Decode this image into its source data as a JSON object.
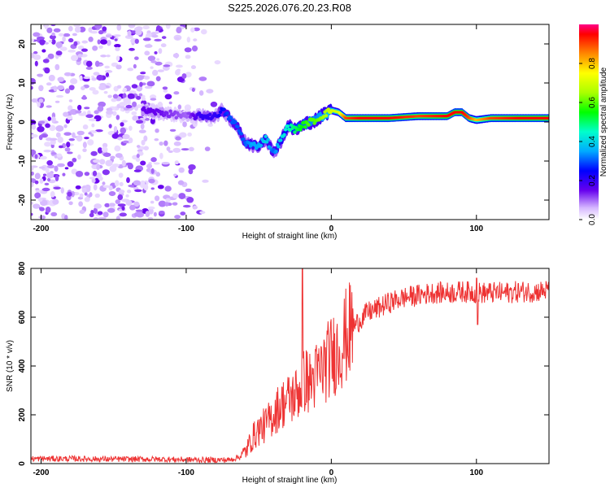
{
  "title": "S225.2026.076.20.23.R08",
  "chart_data": [
    {
      "type": "heatmap",
      "xlabel": "Height of straight line (km)",
      "ylabel": "Frequency (Hz)",
      "xlim": [
        -207,
        150
      ],
      "ylim": [
        -25,
        25
      ],
      "xticks": [
        -200,
        -100,
        0,
        100
      ],
      "xtick_labels": [
        "-200",
        "-100",
        "0",
        "100"
      ],
      "yticks": [
        -20,
        -10,
        0,
        10,
        20
      ],
      "ytick_labels": [
        "-20",
        "-10",
        "0",
        "10",
        "20"
      ],
      "colorbar": {
        "label": "Normalized spectral amplitude",
        "range": [
          0,
          1
        ],
        "ticks": [
          0.0,
          0.2,
          0.4,
          0.6,
          0.8
        ],
        "tick_labels": [
          "0.0",
          "0.2",
          "0.4",
          "0.6",
          "0.8"
        ]
      },
      "ridge": {
        "x": [
          -130,
          -120,
          -100,
          -90,
          -80,
          -75,
          -70,
          -65,
          -60,
          -55,
          -50,
          -45,
          -40,
          -35,
          -30,
          -25,
          -20,
          -15,
          -10,
          -5,
          0,
          5,
          10,
          20,
          40,
          60,
          80,
          85,
          90,
          95,
          100,
          110,
          130,
          150
        ],
        "freq": [
          3,
          2.5,
          1.5,
          1.5,
          1.5,
          3,
          1,
          -1,
          -5,
          -6,
          -6,
          -4,
          -8,
          -5,
          -1,
          -2,
          -1,
          0,
          0.5,
          2,
          3,
          2.5,
          1,
          1,
          1,
          1.5,
          1.5,
          2.5,
          2.5,
          1,
          0.5,
          1,
          1,
          1
        ],
        "amp": [
          0.15,
          0.15,
          0.1,
          0.2,
          0.2,
          0.25,
          0.3,
          0.3,
          0.3,
          0.35,
          0.35,
          0.4,
          0.3,
          0.4,
          0.45,
          0.5,
          0.55,
          0.6,
          0.6,
          0.65,
          0.7,
          0.7,
          0.9,
          0.95,
          0.95,
          0.9,
          0.95,
          0.95,
          0.95,
          0.9,
          0.8,
          0.9,
          0.95,
          0.95
        ]
      },
      "noise_region_x": [
        -207,
        -75
      ]
    },
    {
      "type": "line",
      "xlabel": "Height of straight line (km)",
      "ylabel": "SNR (10 * v/v)",
      "xlim": [
        -207,
        150
      ],
      "ylim": [
        0,
        800
      ],
      "xticks": [
        -200,
        -100,
        0,
        100
      ],
      "xtick_labels": [
        "-200",
        "-100",
        "0",
        "100"
      ],
      "yticks": [
        0,
        200,
        400,
        600,
        800
      ],
      "ytick_labels": [
        "0",
        "200",
        "400",
        "600",
        "800"
      ],
      "series": [
        {
          "name": "SNR",
          "color": "#ee3333",
          "x": [
            -207,
            -180,
            -150,
            -120,
            -90,
            -70,
            -62,
            -58,
            -55,
            -50,
            -45,
            -40,
            -35,
            -30,
            -25,
            -22,
            -20,
            -18,
            -15,
            -10,
            -5,
            0,
            5,
            10,
            15,
            20,
            25,
            30,
            40,
            50,
            60,
            70,
            80,
            90,
            100,
            110,
            120,
            130,
            140,
            150
          ],
          "y": [
            20,
            20,
            18,
            18,
            15,
            15,
            30,
            60,
            100,
            140,
            160,
            200,
            240,
            260,
            280,
            300,
            320,
            350,
            330,
            360,
            400,
            440,
            470,
            520,
            560,
            590,
            620,
            630,
            660,
            680,
            690,
            700,
            700,
            705,
            700,
            700,
            700,
            705,
            705,
            710
          ]
        }
      ]
    }
  ]
}
